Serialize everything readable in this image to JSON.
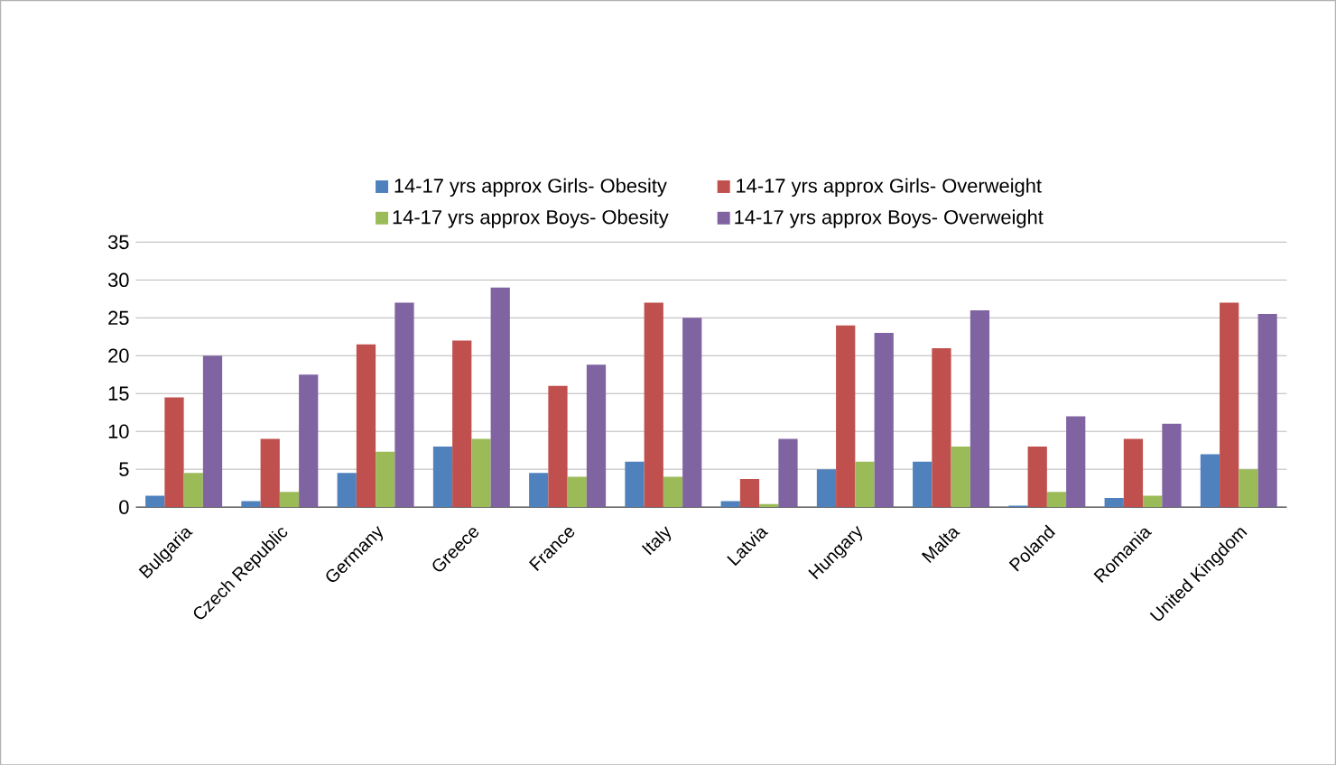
{
  "chart_data": {
    "type": "bar",
    "categories": [
      "Bulgaria",
      "Czech Republic",
      "Germany",
      "Greece",
      "France",
      "Italy",
      "Latvia",
      "Hungary",
      "Malta",
      "Poland",
      "Romania",
      "United Kingdom"
    ],
    "series": [
      {
        "name": "14-17 yrs approx Girls- Obesity",
        "color": "#4f81bd",
        "values": [
          1.5,
          0.8,
          4.5,
          8,
          4.5,
          6,
          0.8,
          5,
          6,
          0.2,
          1.2,
          7
        ]
      },
      {
        "name": "14-17 yrs approx Girls- Overweight",
        "color": "#c0504d",
        "values": [
          14.5,
          9,
          21.5,
          22,
          16,
          27,
          3.7,
          24,
          21,
          8,
          9,
          27
        ]
      },
      {
        "name": "14-17 yrs approx Boys- Obesity",
        "color": "#9bbb59",
        "values": [
          4.5,
          2,
          7.3,
          9,
          4,
          4,
          0.4,
          6,
          8,
          2,
          1.5,
          5
        ]
      },
      {
        "name": "14-17 yrs approx Boys- Overweight",
        "color": "#8064a2",
        "values": [
          20,
          17.5,
          27,
          29,
          18.8,
          25,
          9,
          23,
          26,
          12,
          11,
          25.5
        ]
      }
    ],
    "ylim": [
      0,
      35
    ],
    "yticks": [
      0,
      5,
      10,
      15,
      20,
      25,
      30,
      35
    ],
    "grid": "y",
    "legend": "top"
  }
}
